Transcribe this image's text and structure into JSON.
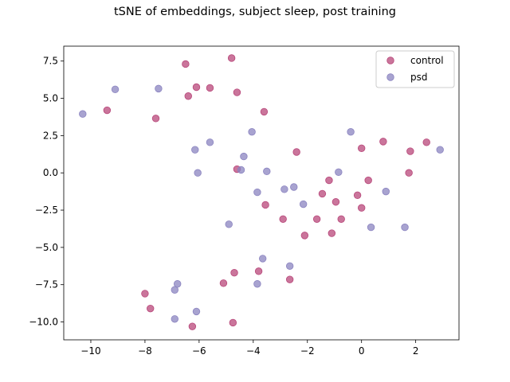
{
  "chart_data": {
    "type": "scatter",
    "title": "tSNE of embeddings, subject sleep, post training",
    "xlabel": "",
    "ylabel": "",
    "xlim": [
      -11.0,
      3.6
    ],
    "ylim": [
      -11.2,
      8.5
    ],
    "xticks": [
      -10,
      -8,
      -6,
      -4,
      -2,
      0,
      2
    ],
    "yticks": [
      -10.0,
      -7.5,
      -5.0,
      -2.5,
      0.0,
      2.5,
      5.0,
      7.5
    ],
    "xtick_labels": [
      "−10",
      "−8",
      "−6",
      "−4",
      "−2",
      "0",
      "2"
    ],
    "ytick_labels": [
      "−10.0",
      "−7.5",
      "−5.0",
      "−2.5",
      "0.0",
      "2.5",
      "5.0",
      "7.5"
    ],
    "grid": false,
    "legend_position": "top-right",
    "series": [
      {
        "name": "control",
        "color": "#b8477a",
        "points": [
          [
            -4.8,
            7.7
          ],
          [
            -6.5,
            7.3
          ],
          [
            -6.1,
            5.75
          ],
          [
            -5.6,
            5.7
          ],
          [
            -6.4,
            5.15
          ],
          [
            -4.6,
            5.4
          ],
          [
            -9.4,
            4.2
          ],
          [
            -7.6,
            3.65
          ],
          [
            -3.6,
            4.1
          ],
          [
            -2.4,
            1.4
          ],
          [
            -4.6,
            0.25
          ],
          [
            -1.2,
            -0.5
          ],
          [
            -1.45,
            -1.4
          ],
          [
            -0.95,
            -1.95
          ],
          [
            -3.55,
            -2.15
          ],
          [
            -0.15,
            -1.5
          ],
          [
            0.0,
            1.65
          ],
          [
            0.8,
            2.1
          ],
          [
            1.8,
            1.45
          ],
          [
            2.4,
            2.05
          ],
          [
            0.25,
            -0.5
          ],
          [
            1.75,
            0.0
          ],
          [
            0.0,
            -2.35
          ],
          [
            -0.75,
            -3.1
          ],
          [
            -1.65,
            -3.1
          ],
          [
            -2.9,
            -3.1
          ],
          [
            -2.1,
            -4.2
          ],
          [
            -1.1,
            -4.05
          ],
          [
            -3.8,
            -6.6
          ],
          [
            -4.7,
            -6.7
          ],
          [
            -5.1,
            -7.4
          ],
          [
            -2.65,
            -7.15
          ],
          [
            -8.0,
            -8.1
          ],
          [
            -7.8,
            -9.1
          ],
          [
            -4.75,
            -10.05
          ],
          [
            -6.25,
            -10.3
          ]
        ]
      },
      {
        "name": "psd",
        "color": "#8b84c0",
        "points": [
          [
            -10.3,
            3.95
          ],
          [
            -9.1,
            5.6
          ],
          [
            -7.5,
            5.65
          ],
          [
            -4.05,
            2.75
          ],
          [
            -5.6,
            2.05
          ],
          [
            -6.15,
            1.55
          ],
          [
            -4.35,
            1.1
          ],
          [
            -6.05,
            0.0
          ],
          [
            -4.45,
            0.2
          ],
          [
            -3.5,
            0.1
          ],
          [
            -0.4,
            2.75
          ],
          [
            2.9,
            1.55
          ],
          [
            -0.85,
            0.05
          ],
          [
            -3.85,
            -1.3
          ],
          [
            -2.85,
            -1.1
          ],
          [
            -2.5,
            -0.95
          ],
          [
            -2.15,
            -2.1
          ],
          [
            0.9,
            -1.25
          ],
          [
            -4.9,
            -3.45
          ],
          [
            0.35,
            -3.65
          ],
          [
            1.6,
            -3.65
          ],
          [
            -3.65,
            -5.75
          ],
          [
            -2.65,
            -6.25
          ],
          [
            -6.8,
            -7.45
          ],
          [
            -3.85,
            -7.45
          ],
          [
            -6.9,
            -7.85
          ],
          [
            -6.9,
            -9.8
          ],
          [
            -6.1,
            -9.3
          ]
        ]
      }
    ]
  }
}
